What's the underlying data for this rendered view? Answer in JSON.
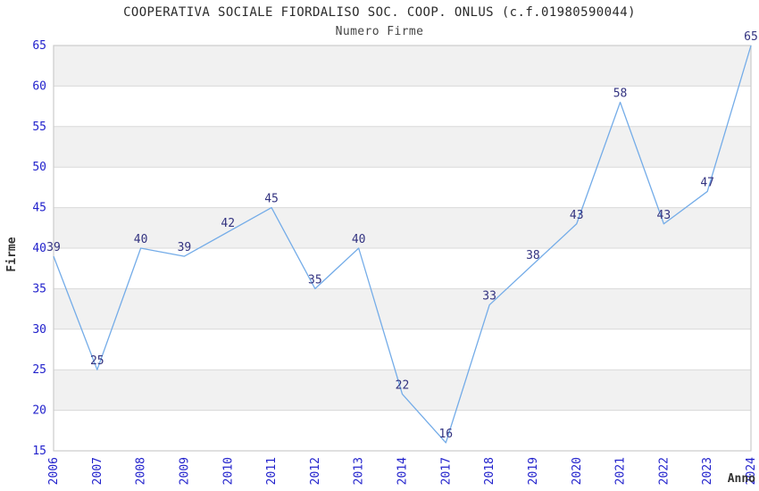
{
  "chart_data": {
    "type": "line",
    "title": "COOPERATIVA SOCIALE FIORDALISO SOC. COOP. ONLUS (c.f.01980590044)",
    "subtitle": "Numero Firme",
    "xlabel": "Anno",
    "ylabel": "Firme",
    "categories": [
      "2006",
      "2007",
      "2008",
      "2009",
      "2010",
      "2011",
      "2012",
      "2013",
      "2014",
      "2017",
      "2018",
      "2019",
      "2020",
      "2021",
      "2022",
      "2023",
      "2024"
    ],
    "values": [
      39,
      25,
      40,
      39,
      42,
      45,
      35,
      40,
      22,
      16,
      33,
      38,
      43,
      58,
      43,
      47,
      65
    ],
    "ylim": [
      15,
      65
    ],
    "ytick_step": 5,
    "yticks": [
      15,
      20,
      25,
      30,
      35,
      40,
      45,
      50,
      55,
      60,
      65
    ],
    "grid": true,
    "band_striping": true,
    "legend": "none",
    "data_labels_shown": true,
    "colors": {
      "line": "#74ACE8",
      "tick_labels": "#2222CC",
      "data_labels": "#333380",
      "title": "#2B2B2B",
      "subtitle": "#444444",
      "axis_labels": "#333333",
      "band": "#F1F1F1",
      "gridline": "#D9D9D9",
      "border": "#CCCCCC",
      "background": "#FFFFFF"
    }
  }
}
